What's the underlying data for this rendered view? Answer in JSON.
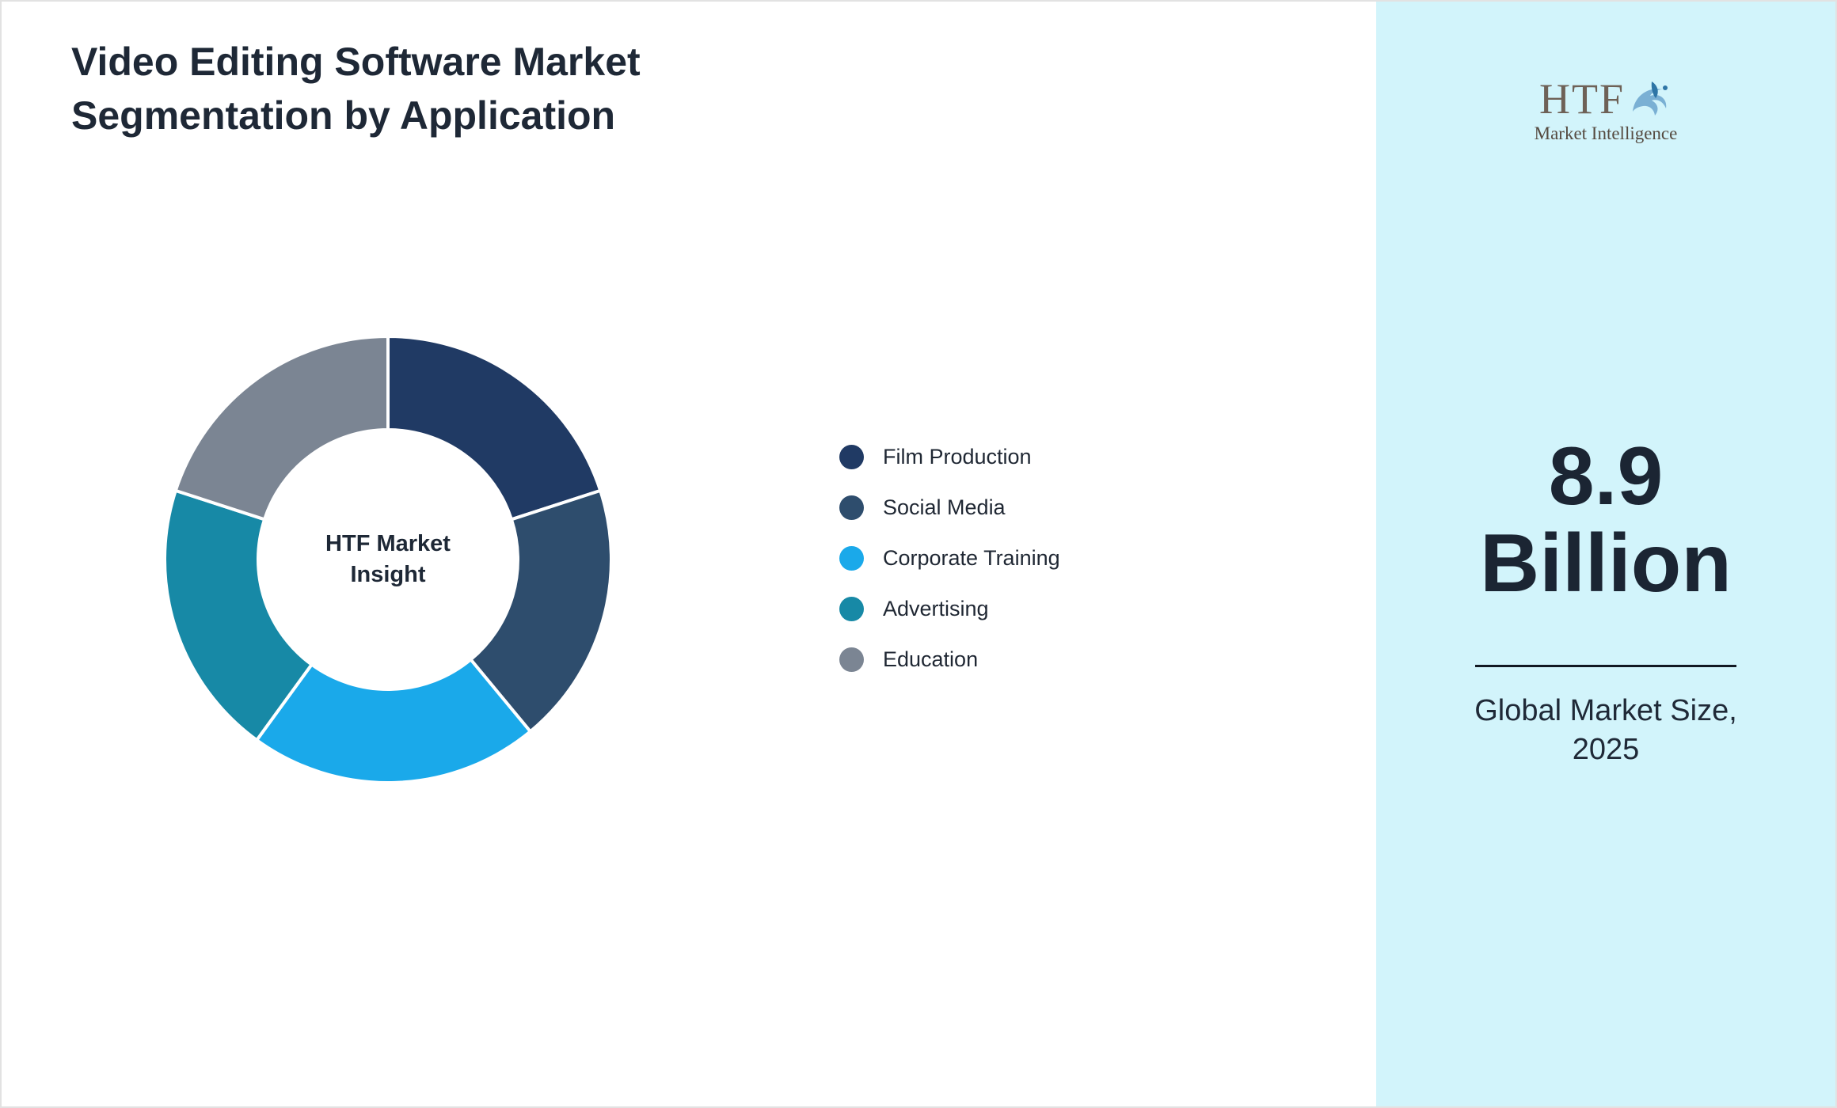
{
  "page": {
    "title_line1": "Video Editing Software Market",
    "title_line2": "Segmentation by Application"
  },
  "chart_data": {
    "type": "pie",
    "subtype": "donut",
    "title": "Video Editing Software Market Segmentation by Application",
    "categories": [
      "Film Production",
      "Social Media",
      "Corporate Training",
      "Advertising",
      "Education"
    ],
    "values": [
      20,
      19,
      21,
      20,
      20
    ],
    "colors": [
      "#203a64",
      "#2e4d6d",
      "#1aa9ea",
      "#1789a6",
      "#7b8593"
    ],
    "center_label_line1": "HTF Market",
    "center_label_line2": "Insight",
    "legend_position": "right",
    "data_labels": false
  },
  "legend": {
    "items": [
      {
        "label": "Film Production",
        "color": "#203a64"
      },
      {
        "label": "Social Media",
        "color": "#2e4d6d"
      },
      {
        "label": "Corporate Training",
        "color": "#1aa9ea"
      },
      {
        "label": "Advertising",
        "color": "#1789a6"
      },
      {
        "label": "Education",
        "color": "#7b8593"
      }
    ]
  },
  "sidebar": {
    "panel_color": "#d2f4fb",
    "logo_text": "HTF",
    "logo_subtext": "Market Intelligence",
    "value": "8.9",
    "unit": "Billion",
    "caption_line1": "Global Market Size,",
    "caption_line2": "2025"
  }
}
